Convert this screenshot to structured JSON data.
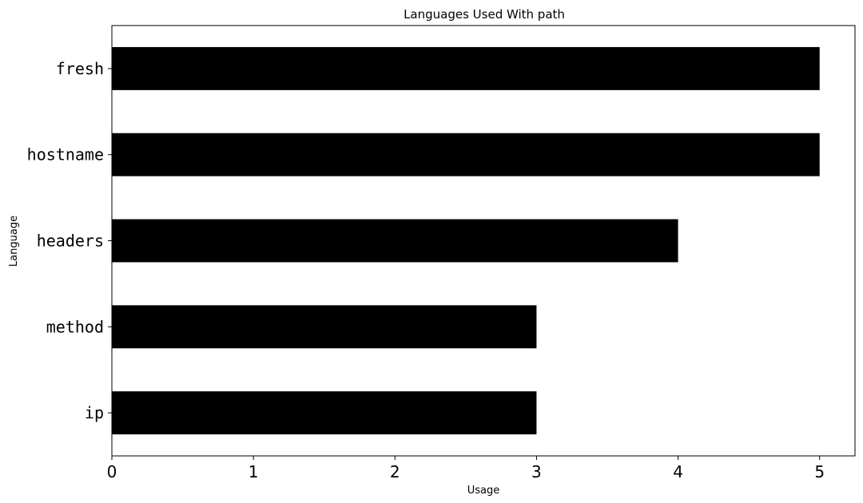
{
  "chart_data": {
    "type": "bar",
    "orientation": "horizontal",
    "title": "Languages Used With path",
    "xlabel": "Usage",
    "ylabel": "Language",
    "categories": [
      "fresh",
      "hostname",
      "headers",
      "method",
      "ip"
    ],
    "values": [
      5,
      5,
      4,
      3,
      3
    ],
    "xlim": [
      0,
      5.25
    ],
    "x_ticks": [
      "0",
      "1",
      "2",
      "3",
      "4",
      "5"
    ],
    "grid": false,
    "legend": "none",
    "bar_color": "#000000"
  }
}
